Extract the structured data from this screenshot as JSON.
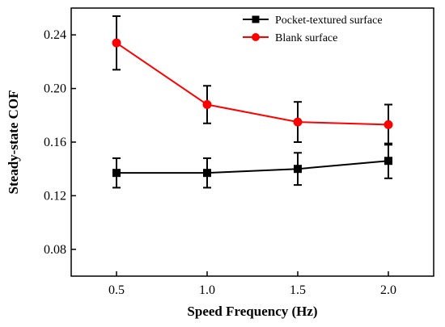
{
  "chart_data": {
    "type": "line",
    "title": "",
    "xlabel": "Speed Frequency (Hz)",
    "ylabel": "Steady-state COF",
    "xlim": [
      0.25,
      2.25
    ],
    "ylim": [
      0.06,
      0.26
    ],
    "x": [
      0.5,
      1.0,
      1.5,
      2.0
    ],
    "xticks": [
      "0.5",
      "1.0",
      "1.5",
      "2.0"
    ],
    "yticks": [
      "0.08",
      "0.12",
      "0.16",
      "0.20",
      "0.24"
    ],
    "grid": false,
    "legend_position": "top-right",
    "series": [
      {
        "name": "Pocket-textured surface",
        "color": "#000000",
        "marker": "square",
        "values": [
          0.137,
          0.137,
          0.14,
          0.146
        ],
        "error": [
          0.011,
          0.011,
          0.012,
          0.013
        ]
      },
      {
        "name": "Blank surface",
        "color": "#ff0000",
        "marker": "circle",
        "values": [
          0.234,
          0.188,
          0.175,
          0.173
        ],
        "error": [
          0.02,
          0.014,
          0.015,
          0.015
        ]
      }
    ]
  }
}
